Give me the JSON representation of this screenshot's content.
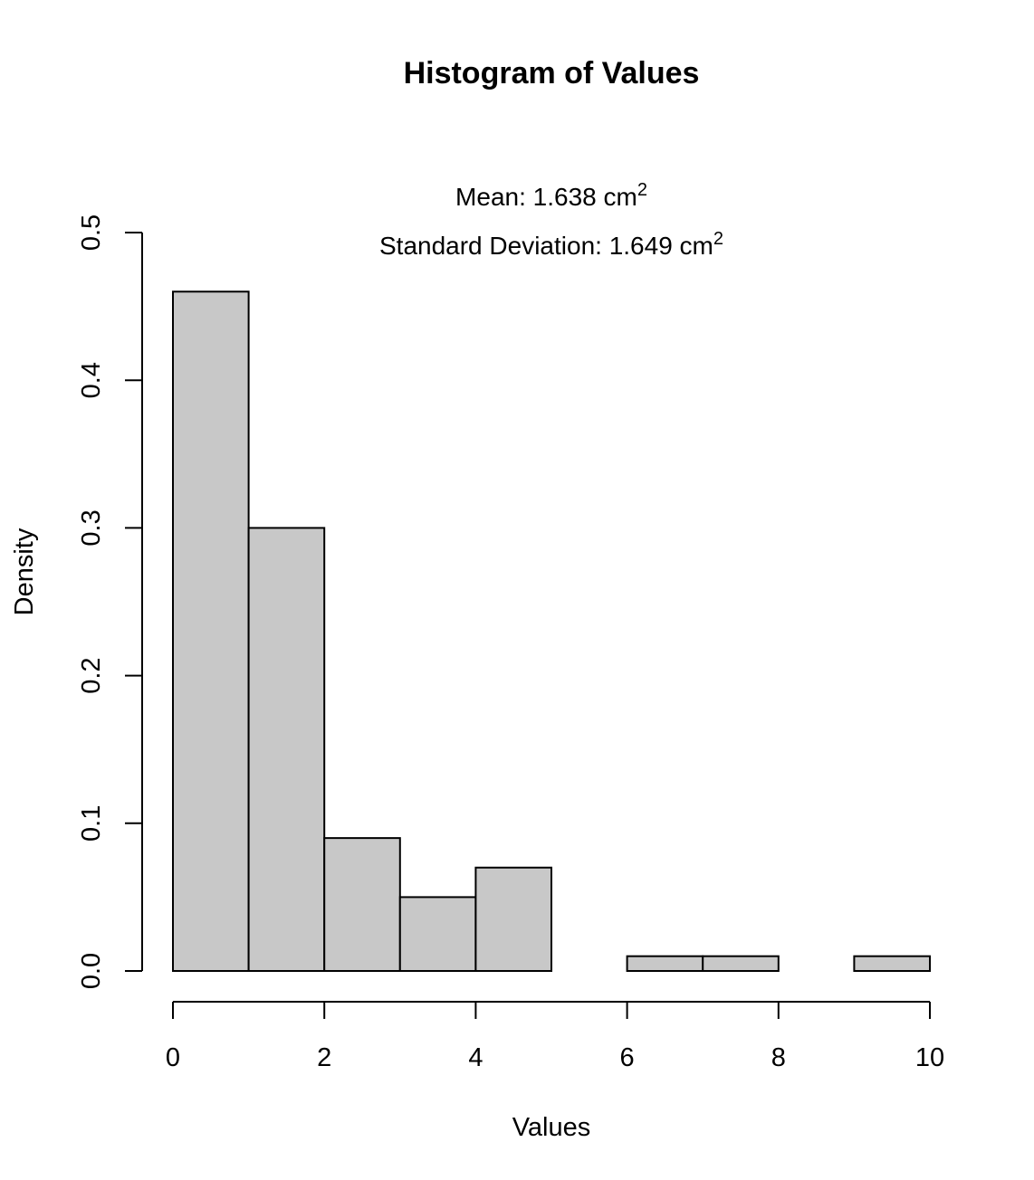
{
  "chart_data": {
    "type": "bar",
    "title": "Histogram of Values",
    "subtitle_mean_prefix": "Mean: 1.638 cm",
    "subtitle_mean_sup": "2",
    "subtitle_sd_prefix": "Standard Deviation: 1.649 cm",
    "subtitle_sd_sup": "2",
    "xlabel": "Values",
    "ylabel": "Density",
    "xlim": [
      0,
      10
    ],
    "ylim": [
      0,
      0.5
    ],
    "x_ticks": [
      0,
      2,
      4,
      6,
      8,
      10
    ],
    "x_tick_labels": [
      "0",
      "2",
      "4",
      "6",
      "8",
      "10"
    ],
    "y_ticks": [
      0,
      0.1,
      0.2,
      0.3,
      0.4,
      0.5
    ],
    "y_tick_labels": [
      "0.0",
      "0.1",
      "0.2",
      "0.3",
      "0.4",
      "0.5"
    ],
    "bins": [
      {
        "x0": 0,
        "x1": 1,
        "density": 0.46
      },
      {
        "x0": 1,
        "x1": 2,
        "density": 0.3
      },
      {
        "x0": 2,
        "x1": 3,
        "density": 0.09
      },
      {
        "x0": 3,
        "x1": 4,
        "density": 0.05
      },
      {
        "x0": 4,
        "x1": 5,
        "density": 0.07
      },
      {
        "x0": 5,
        "x1": 6,
        "density": 0.0
      },
      {
        "x0": 6,
        "x1": 7,
        "density": 0.01
      },
      {
        "x0": 7,
        "x1": 8,
        "density": 0.01
      },
      {
        "x0": 8,
        "x1": 9,
        "density": 0.0
      },
      {
        "x0": 9,
        "x1": 10,
        "density": 0.01
      }
    ],
    "bar_color": "#c8c8c8",
    "grid": false,
    "legend": "none"
  }
}
